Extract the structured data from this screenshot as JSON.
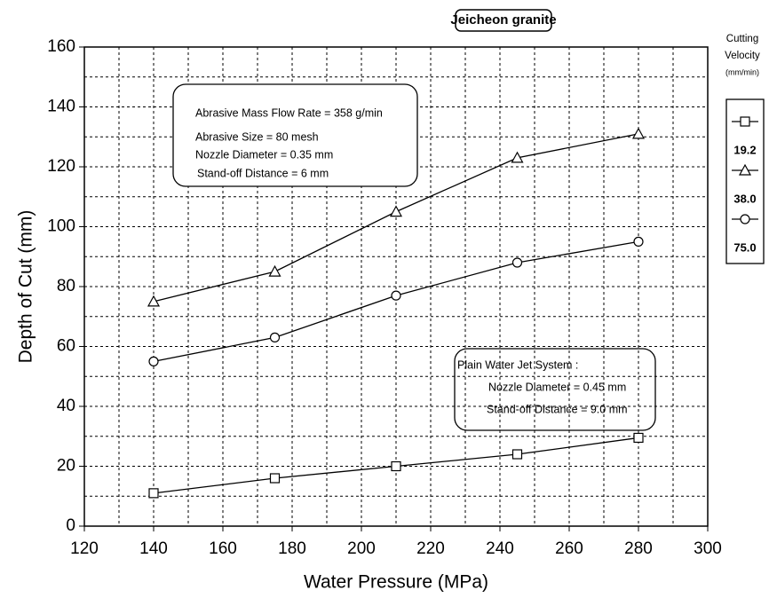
{
  "chart_data": {
    "type": "line",
    "title": "Jeicheon granite",
    "x_label": "Water Pressure (MPa)",
    "y_label": "Depth of Cut (mm)",
    "x": [
      140,
      175,
      210,
      245,
      280
    ],
    "series": [
      {
        "name": "19.2",
        "color": "#000000",
        "marker": "square",
        "values": [
          11,
          16,
          20,
          24,
          29.5
        ]
      },
      {
        "name": "38.0",
        "color": "#000000",
        "marker": "triangle",
        "values": [
          75,
          85,
          105,
          123,
          131
        ]
      },
      {
        "name": "75.0",
        "color": "#000000",
        "marker": "circle",
        "values": [
          55,
          63,
          77,
          88,
          95
        ]
      }
    ],
    "legend_title": [
      "Cutting",
      "Velocity",
      "(mm/min)"
    ],
    "legend_position": "right",
    "xlim": [
      120,
      300
    ],
    "xticks": [
      120,
      140,
      160,
      180,
      200,
      220,
      240,
      260,
      280,
      300
    ],
    "ylim": [
      0,
      160
    ],
    "yticks": [
      0,
      20,
      40,
      60,
      80,
      100,
      120,
      140,
      160
    ],
    "grid": true,
    "annotations": [
      [
        "Abrasive Mass Flow Rate = 358 g/min",
        "Abrasive Size = 80 mesh",
        "Nozzle Diameter = 0.35 mm",
        "Stand-off Distance = 6 mm"
      ],
      [
        "Plain Water Jet System :",
        "Nozzle Diameter = 0.45 mm",
        "Stand-off Distance = 9.0 mm"
      ]
    ]
  }
}
